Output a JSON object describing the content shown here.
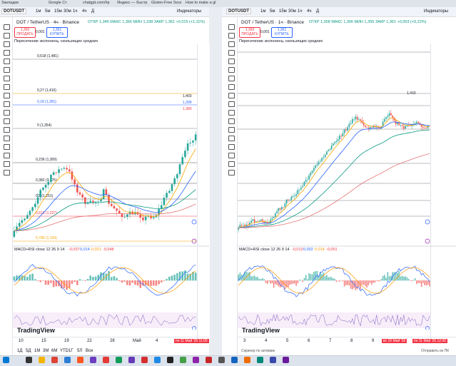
{
  "browser": {
    "tabs": [
      "Закладки",
      "Google Ст",
      "chatgpt.com/#p",
      "Яндекс — быстр",
      "Gluten-Free Sour",
      "How to make a gl"
    ]
  },
  "left": {
    "symbol": "DOTUSDT",
    "timeframes": [
      "1м",
      "5м",
      "15м",
      "30м",
      "1ч",
      "4ч",
      "Д"
    ],
    "indicators": "Индикаторы",
    "title": "DOT / TetherUS · 4ч · Binance",
    "ohlc": "ОТКР 1,346 МАКС 1,366 МИН 1,338 ЗАКР 1,361 +0,015 (+1,11%)",
    "sell": {
      "price": "1,360",
      "label": "ПРОДАТЬ"
    },
    "spread": "0,001",
    "buy": {
      "price": "1,361",
      "label": "КУПИТЬ"
    },
    "indicator_name": "Пересечение экспоненц. скользящих средних",
    "fib_levels": [
      "0,618 (1,481)",
      "0,27 (1,410)",
      "0,18 (1,391)",
      "0 (1,354)",
      "0,236 (1,309)",
      "0,382 (1,275)",
      "0,5 (1,251)",
      "0,618 (1,227)",
      "0,786 (1,194)"
    ],
    "price_labels": [
      "1,403",
      "1,399",
      "1,380"
    ],
    "macd": {
      "name": "MACD+RSI close 12 26 9 14",
      "values": [
        "-0,037",
        "0,014",
        "0,021",
        "-0,048"
      ]
    },
    "logo": "TradingView",
    "x_labels": [
      "10",
      "15",
      "19",
      "22",
      "28",
      "Май",
      "4"
    ],
    "cursor_time": "пн 11 Май '26 11:00",
    "ranges": [
      "1Д",
      "5Д",
      "1М",
      "3М",
      "6М",
      "YTD",
      "1Г",
      "5Л",
      "Все"
    ]
  },
  "right": {
    "symbol": "DOTUSDT",
    "timeframes": [
      "1м",
      "5м",
      "15м",
      "30м",
      "1ч",
      "4ч",
      "Д"
    ],
    "indicators": "Индикаторы",
    "title": "DOT / TetherUS · 1ч · Binance",
    "ohlc": "ОТКР 1,358 МАКС 1,366 МИН 1,355 ЗАКР 1,361 +0,003 (+0,22%)",
    "sell": {
      "price": "1,360",
      "label": "ПРОДАТЬ"
    },
    "spread": "0,001",
    "buy": {
      "price": "1,361",
      "label": "КУПИТЬ"
    },
    "indicator_name": "Пересечение экспоненц. скользящих средних",
    "price_label": "1,403",
    "macd": {
      "name": "MACD+RSI close 12 26 9 14",
      "values": [
        "-0,013",
        "0,002",
        "0,014",
        "-0,051"
      ]
    },
    "logo": "TradingView",
    "x_labels": [
      "3",
      "4",
      "5",
      "6",
      "7",
      "8",
      "9"
    ],
    "cursor_time": "вс 10 Май '26",
    "cursor_time2": "пн 11 Май '26 12:00",
    "footer": [
      "Скринер по активам",
      "Отправить из ПК"
    ]
  }
}
